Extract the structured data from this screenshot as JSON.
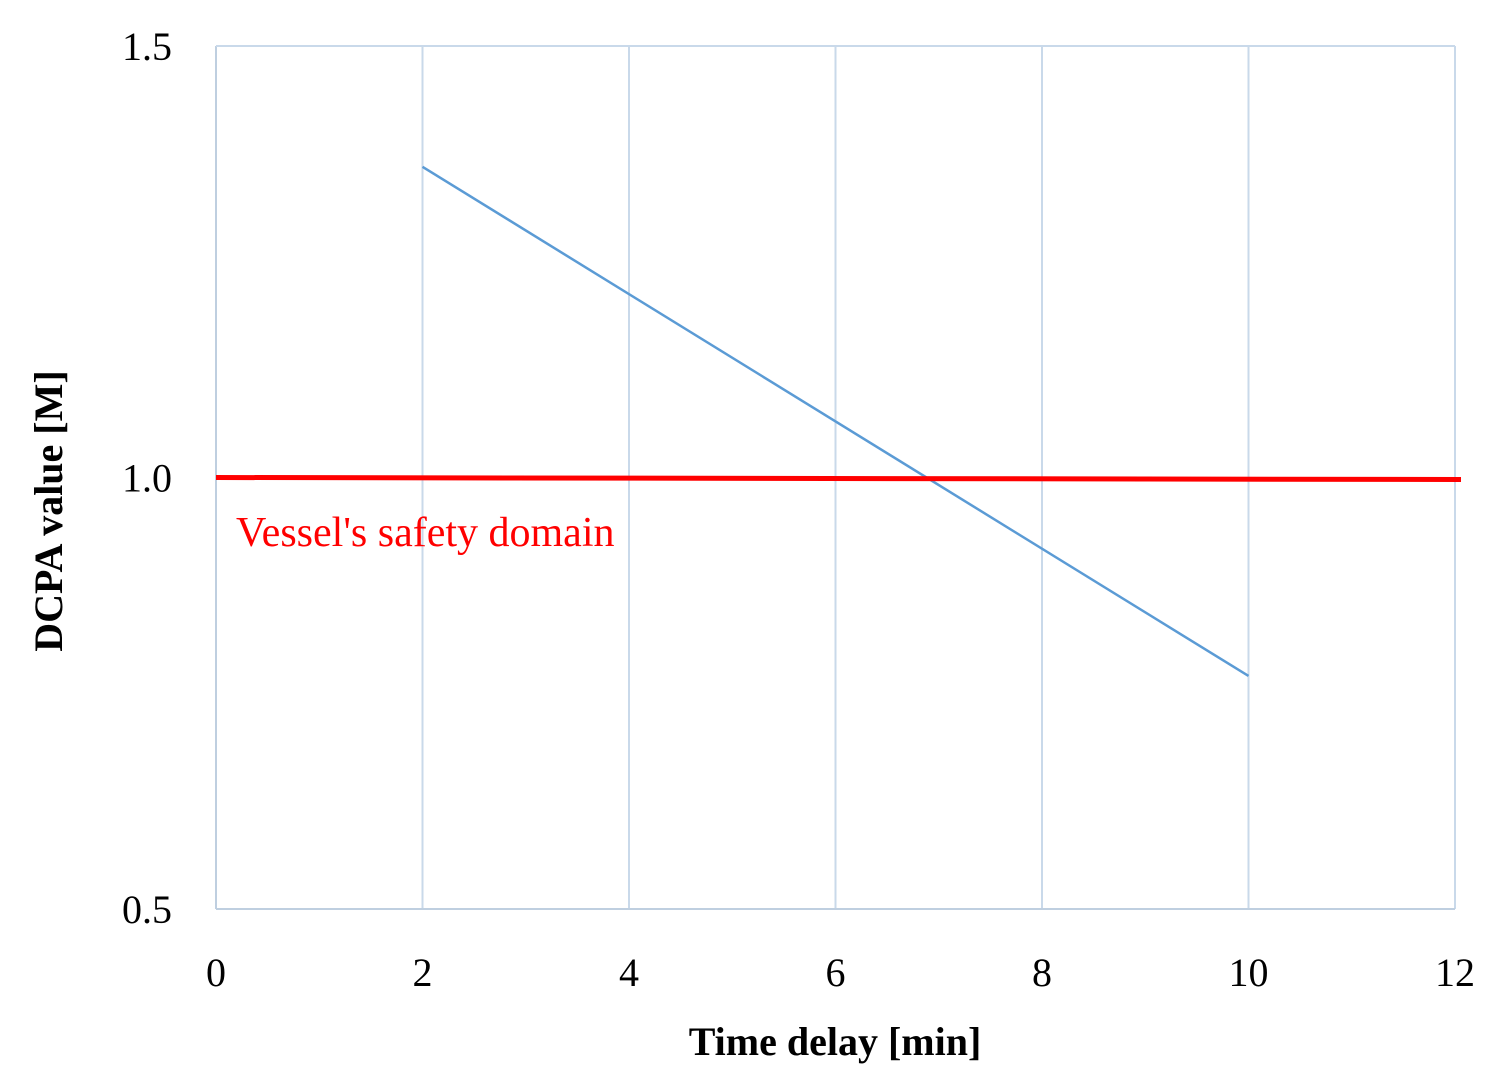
{
  "chart_data": {
    "type": "line",
    "title": "",
    "xlabel": "Time delay [min]",
    "ylabel": "DCPA value [M]",
    "xlim": [
      0,
      12
    ],
    "ylim": [
      0.5,
      1.5
    ],
    "x_ticks": [
      "0",
      "2",
      "4",
      "6",
      "8",
      "10",
      "12"
    ],
    "y_ticks": [
      "0.5",
      "1.0",
      "1.5"
    ],
    "grid": "vertical",
    "series": [
      {
        "x": [
          2,
          10
        ],
        "y": [
          1.36,
          0.77
        ],
        "color": "#5b9bd5"
      }
    ],
    "reference_line": {
      "y": 1.0,
      "x_range": [
        0,
        12
      ],
      "color": "#ff0000",
      "label": "Vessel's safety domain"
    },
    "colors": {
      "gridline": "#c9d9ea",
      "axis": "#bfcfe0",
      "text": "#000000"
    }
  }
}
